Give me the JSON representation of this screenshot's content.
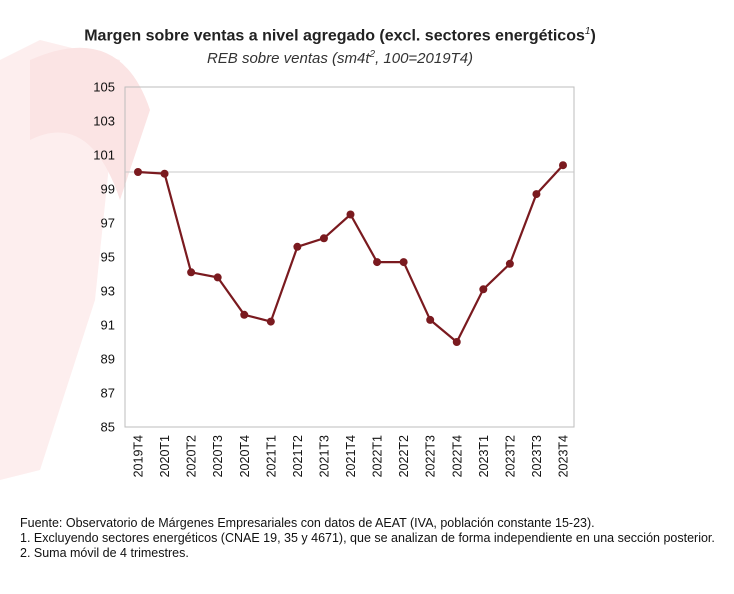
{
  "chart_data": {
    "type": "line",
    "title": "Margen sobre ventas a nivel agregado (excl. sectores energéticos",
    "title_sup": "1",
    "title_close": ")",
    "subtitle_pre": "REB sobre ventas (sm4t",
    "subtitle_sup": "2",
    "subtitle_post": ", 100=2019T4)",
    "categories": [
      "2019T4",
      "2020T1",
      "2020T2",
      "2020T3",
      "2020T4",
      "2021T1",
      "2021T2",
      "2021T3",
      "2021T4",
      "2022T1",
      "2022T2",
      "2022T3",
      "2022T4",
      "2023T1",
      "2023T2",
      "2023T3",
      "2023T4"
    ],
    "series": [
      {
        "name": "Margen sobre ventas",
        "color": "#7a1a1f",
        "values": [
          100.0,
          99.9,
          94.1,
          93.8,
          91.6,
          91.2,
          95.6,
          96.1,
          97.5,
          94.7,
          94.7,
          91.3,
          90.0,
          93.1,
          94.6,
          98.7,
          100.4
        ]
      }
    ],
    "yticks": [
      "105",
      "103",
      "101",
      "99",
      "97",
      "95",
      "93",
      "91",
      "89",
      "87",
      "85"
    ],
    "ylim": [
      85,
      105
    ],
    "reference_line": 100,
    "grid": false
  },
  "footnotes": {
    "source": "Fuente: Observatorio de Márgenes Empresariales con datos de AEAT (IVA, población constante 15-23).",
    "note1": "1. Excluyendo sectores energéticos (CNAE 19, 35 y 4671), que se analizan de forma independiente en una sección posterior.",
    "note2": "2. Suma móvil de 4 trimestres."
  },
  "colors": {
    "line": "#7a1a1f",
    "marker": "#7a1a1f",
    "axis": "#888888",
    "reference": "#c8c8c8",
    "watermark": "#fbe6e6"
  }
}
